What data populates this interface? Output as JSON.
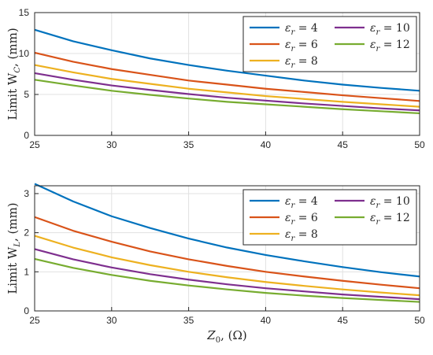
{
  "chart_data": [
    {
      "type": "line",
      "ylabel": "Limit W_C, (mm)",
      "ylabel_main": "Limit W",
      "ylabel_sub": "C",
      "ylabel_unit": ", (mm)",
      "xlabel": "",
      "xlim": [
        25,
        50
      ],
      "ylim": [
        0,
        15
      ],
      "xticks": [
        "25",
        "30",
        "35",
        "40",
        "45",
        "50"
      ],
      "yticks": [
        "0",
        "5",
        "10",
        "15"
      ],
      "grid": true,
      "legend_placement": "top-right",
      "x": [
        25,
        27.5,
        30,
        32.5,
        35,
        37.5,
        40,
        42.5,
        45,
        47.5,
        50
      ],
      "series": [
        {
          "name": "ε_r = 4",
          "label_sym": "ε",
          "label_sub": "r",
          "label_rest": " = 4",
          "color": "#0072BD",
          "values": [
            12.9,
            11.5,
            10.4,
            9.4,
            8.6,
            7.9,
            7.3,
            6.7,
            6.2,
            5.8,
            5.45
          ]
        },
        {
          "name": "ε_r = 6",
          "label_sym": "ε",
          "label_sub": "r",
          "label_rest": " = 6",
          "color": "#D95319",
          "values": [
            10.1,
            9.0,
            8.1,
            7.4,
            6.7,
            6.2,
            5.7,
            5.3,
            4.9,
            4.55,
            4.2
          ]
        },
        {
          "name": "ε_r = 8",
          "label_sym": "ε",
          "label_sub": "r",
          "label_rest": " = 8",
          "color": "#EDB120",
          "values": [
            8.6,
            7.7,
            6.9,
            6.3,
            5.7,
            5.25,
            4.8,
            4.45,
            4.1,
            3.8,
            3.5
          ]
        },
        {
          "name": "ε_r = 10",
          "label_sym": "ε",
          "label_sub": "r",
          "label_rest": " = 10",
          "color": "#7E2F8E",
          "values": [
            7.6,
            6.8,
            6.1,
            5.55,
            5.05,
            4.6,
            4.25,
            3.9,
            3.6,
            3.3,
            3.05
          ]
        },
        {
          "name": "ε_r = 12",
          "label_sym": "ε",
          "label_sub": "r",
          "label_rest": " = 12",
          "color": "#77AC30",
          "values": [
            6.8,
            6.1,
            5.45,
            4.95,
            4.5,
            4.1,
            3.8,
            3.5,
            3.2,
            2.95,
            2.7
          ]
        }
      ]
    },
    {
      "type": "line",
      "ylabel": "Limit W_L, (mm)",
      "ylabel_main": "Limit W",
      "ylabel_sub": "L",
      "ylabel_unit": ", (mm)",
      "xlabel": "Z_0, (Ω)",
      "xlabel_main": "Z",
      "xlabel_sub": "0",
      "xlabel_unit": ", (Ω)",
      "xlim": [
        25,
        50
      ],
      "ylim": [
        0,
        3.2
      ],
      "xticks": [
        "25",
        "30",
        "35",
        "40",
        "45",
        "50"
      ],
      "yticks": [
        "0",
        "1",
        "2",
        "3"
      ],
      "ytick_values": [
        0,
        1,
        2,
        3
      ],
      "grid": true,
      "legend_placement": "top-right",
      "x": [
        25,
        27.5,
        30,
        32.5,
        35,
        37.5,
        40,
        42.5,
        45,
        47.5,
        50
      ],
      "series": [
        {
          "name": "ε_r = 4",
          "color": "#0072BD",
          "values": [
            3.25,
            2.8,
            2.42,
            2.12,
            1.85,
            1.62,
            1.43,
            1.27,
            1.12,
            0.99,
            0.88
          ]
        },
        {
          "name": "ε_r = 6",
          "color": "#D95319",
          "values": [
            2.4,
            2.05,
            1.77,
            1.52,
            1.32,
            1.15,
            1.0,
            0.88,
            0.77,
            0.67,
            0.58
          ]
        },
        {
          "name": "ε_r = 8",
          "color": "#EDB120",
          "values": [
            1.92,
            1.62,
            1.37,
            1.17,
            1.0,
            0.86,
            0.74,
            0.64,
            0.55,
            0.47,
            0.4
          ]
        },
        {
          "name": "ε_r = 10",
          "color": "#7E2F8E",
          "values": [
            1.58,
            1.32,
            1.11,
            0.94,
            0.8,
            0.68,
            0.58,
            0.5,
            0.42,
            0.36,
            0.3
          ]
        },
        {
          "name": "ε_r = 12",
          "color": "#77AC30",
          "values": [
            1.33,
            1.1,
            0.92,
            0.77,
            0.65,
            0.55,
            0.46,
            0.39,
            0.33,
            0.28,
            0.23
          ]
        }
      ]
    }
  ]
}
